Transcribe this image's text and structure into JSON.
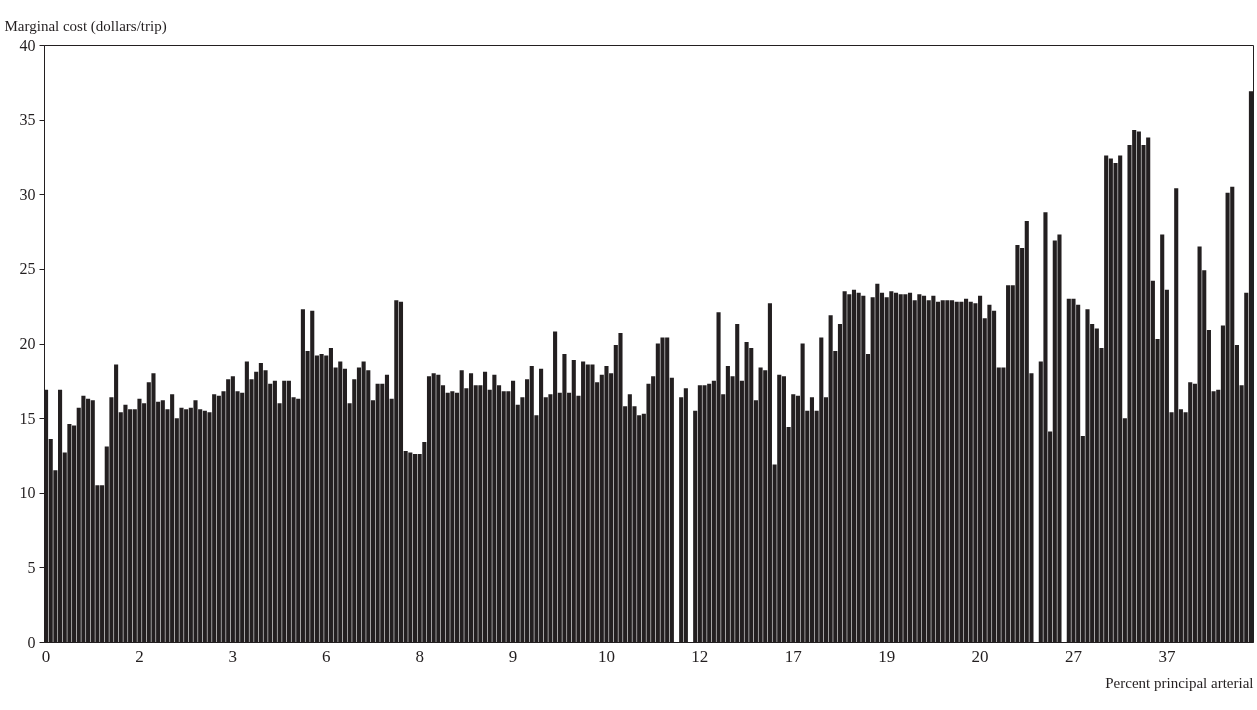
{
  "chart_data": {
    "type": "bar",
    "xlabel": "Percent principal arterial",
    "ylabel": "Marginal cost (dollars/trip)",
    "color": "#231f20",
    "ylim": [
      0,
      40
    ],
    "yticks": [
      0,
      5,
      10,
      15,
      20,
      25,
      30,
      35,
      40
    ],
    "categories": [
      "0",
      null,
      null,
      null,
      null,
      null,
      null,
      null,
      null,
      null,
      null,
      null,
      null,
      null,
      null,
      null,
      null,
      null,
      null,
      null,
      "2",
      null,
      null,
      null,
      null,
      null,
      null,
      null,
      null,
      null,
      null,
      null,
      null,
      null,
      null,
      null,
      null,
      null,
      null,
      null,
      "3",
      null,
      null,
      null,
      null,
      null,
      null,
      null,
      null,
      null,
      null,
      null,
      null,
      null,
      null,
      null,
      null,
      null,
      null,
      null,
      "6",
      null,
      null,
      null,
      null,
      null,
      null,
      null,
      null,
      null,
      null,
      null,
      null,
      null,
      null,
      null,
      null,
      null,
      null,
      null,
      "8",
      null,
      null,
      null,
      null,
      null,
      null,
      null,
      null,
      null,
      null,
      null,
      null,
      null,
      null,
      null,
      null,
      null,
      null,
      null,
      "9",
      null,
      null,
      null,
      null,
      null,
      null,
      null,
      null,
      null,
      null,
      null,
      null,
      null,
      null,
      null,
      null,
      null,
      null,
      null,
      "10",
      null,
      null,
      null,
      null,
      null,
      null,
      null,
      null,
      null,
      null,
      null,
      null,
      null,
      null,
      null,
      null,
      null,
      null,
      null,
      "12",
      null,
      null,
      null,
      null,
      null,
      null,
      null,
      null,
      null,
      null,
      null,
      null,
      null,
      null,
      null,
      null,
      null,
      null,
      null,
      "17",
      null,
      null,
      null,
      null,
      null,
      null,
      null,
      null,
      null,
      null,
      null,
      null,
      null,
      null,
      null,
      null,
      null,
      null,
      null,
      "19",
      null,
      null,
      null,
      null,
      null,
      null,
      null,
      null,
      null,
      null,
      null,
      null,
      null,
      null,
      null,
      null,
      null,
      null,
      null,
      "20",
      null,
      null,
      null,
      null,
      null,
      null,
      null,
      null,
      null,
      null,
      null,
      null,
      null,
      null,
      null,
      null,
      null,
      null,
      null,
      "27",
      null,
      null,
      null,
      null,
      null,
      null,
      null,
      null,
      null,
      null,
      null,
      null,
      null,
      null,
      null,
      null,
      null,
      null,
      null,
      "37",
      null,
      null,
      null,
      null,
      null,
      null,
      null,
      null,
      null,
      null,
      null,
      null,
      null,
      null,
      null,
      null,
      null,
      null
    ],
    "values": [
      16.9,
      13.6,
      11.5,
      16.9,
      12.7,
      14.6,
      14.5,
      15.7,
      16.5,
      16.3,
      16.2,
      10.5,
      10.5,
      13.1,
      16.4,
      18.6,
      15.4,
      15.9,
      15.6,
      15.6,
      16.3,
      16.0,
      17.4,
      18.0,
      16.1,
      16.2,
      15.6,
      16.6,
      15.0,
      15.7,
      15.6,
      15.7,
      16.2,
      15.6,
      15.5,
      15.4,
      16.6,
      16.5,
      16.8,
      17.6,
      17.8,
      16.8,
      16.7,
      18.8,
      17.6,
      18.1,
      18.7,
      18.2,
      17.3,
      17.5,
      16.0,
      17.5,
      17.5,
      16.4,
      16.3,
      22.3,
      19.5,
      22.2,
      19.2,
      19.3,
      19.2,
      19.7,
      18.4,
      18.8,
      18.3,
      16.0,
      17.6,
      18.4,
      18.8,
      18.2,
      16.2,
      17.3,
      17.3,
      17.9,
      16.3,
      22.9,
      22.8,
      12.8,
      12.7,
      12.6,
      12.6,
      13.4,
      17.8,
      18.0,
      17.9,
      17.2,
      16.7,
      16.8,
      16.7,
      18.2,
      17.0,
      18.0,
      17.2,
      17.2,
      18.1,
      16.9,
      17.9,
      17.2,
      16.8,
      16.8,
      17.5,
      15.9,
      16.4,
      17.6,
      18.5,
      15.2,
      18.3,
      16.4,
      16.6,
      20.8,
      16.7,
      19.3,
      16.7,
      18.9,
      16.5,
      18.8,
      18.6,
      18.6,
      17.4,
      17.9,
      18.5,
      18.0,
      19.9,
      20.7,
      15.8,
      16.6,
      15.8,
      15.2,
      15.3,
      17.3,
      17.8,
      20.0,
      20.4,
      20.4,
      17.7,
      0,
      16.4,
      17.0,
      0,
      15.5,
      17.2,
      17.2,
      17.3,
      17.5,
      22.1,
      16.6,
      18.5,
      17.8,
      21.3,
      17.5,
      20.1,
      19.7,
      16.2,
      18.4,
      18.2,
      22.7,
      11.9,
      17.9,
      17.8,
      14.4,
      16.6,
      16.5,
      20.0,
      15.5,
      16.4,
      15.5,
      20.4,
      16.4,
      21.9,
      19.5,
      21.3,
      23.5,
      23.3,
      23.6,
      23.4,
      23.2,
      19.3,
      23.1,
      24.0,
      23.4,
      23.1,
      23.5,
      23.4,
      23.3,
      23.3,
      23.4,
      22.9,
      23.3,
      23.2,
      22.9,
      23.2,
      22.8,
      22.9,
      22.9,
      22.9,
      22.8,
      22.8,
      23.0,
      22.8,
      22.7,
      23.2,
      21.7,
      22.6,
      22.2,
      18.4,
      18.4,
      23.9,
      23.9,
      26.6,
      26.4,
      28.2,
      18.0,
      0,
      18.8,
      28.8,
      14.1,
      26.9,
      27.3,
      0,
      23.0,
      23.0,
      22.6,
      13.8,
      22.3,
      21.3,
      21.0,
      19.7,
      32.6,
      32.4,
      32.1,
      32.6,
      15.0,
      33.3,
      34.3,
      34.2,
      33.3,
      33.8,
      24.2,
      20.3,
      27.3,
      23.6,
      15.4,
      30.4,
      15.6,
      15.4,
      17.4,
      17.3,
      26.5,
      24.9,
      20.9,
      16.8,
      16.9,
      21.2,
      30.1,
      30.5,
      19.9,
      17.2,
      23.4,
      36.9
    ]
  }
}
